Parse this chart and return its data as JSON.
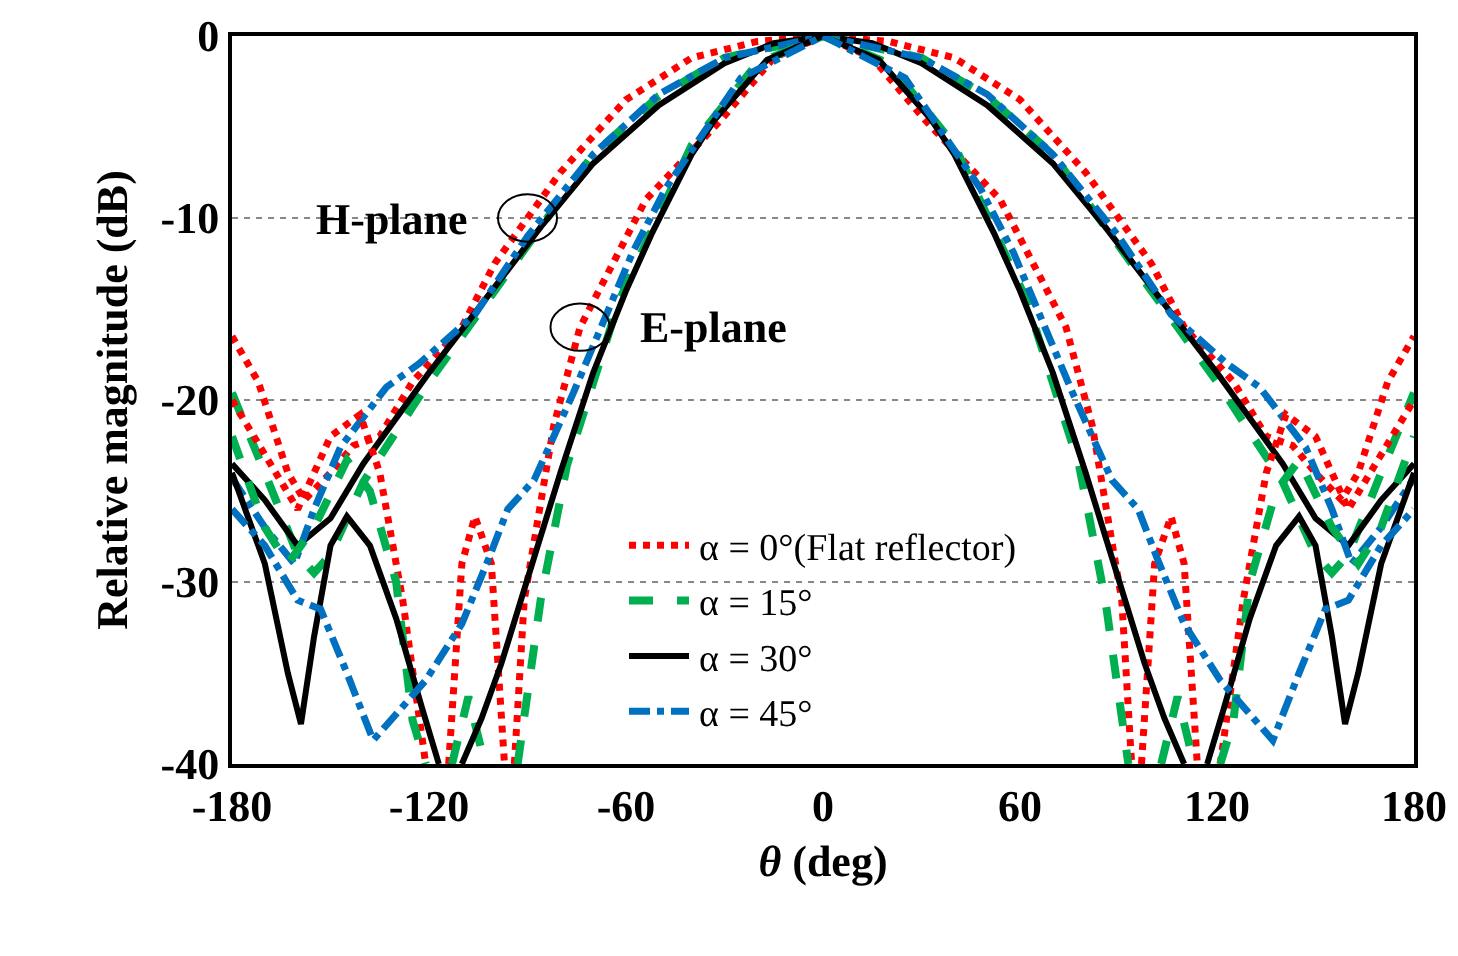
{
  "chart_data": {
    "type": "line",
    "xlabel": "θ (deg)",
    "ylabel": "Relative magnitude (dB)",
    "xlim": [
      -180,
      180
    ],
    "xticks": [
      -180,
      -120,
      -60,
      0,
      60,
      120,
      180
    ],
    "ylim": [
      -40,
      0
    ],
    "yticks": [
      -40,
      -30,
      -20,
      -10,
      0
    ],
    "grid": "y",
    "legend": "bottom",
    "marker": "none",
    "annotations": [
      {
        "text": "H-plane",
        "x": -90,
        "y": -10
      },
      {
        "text": "E-plane",
        "x": -74,
        "y": -16
      }
    ],
    "series": [
      {
        "name": "α = 0°(Flat reflector)",
        "color": "#ff0000",
        "line_style": "dotted",
        "x": [
          -180,
          -172,
          -163,
          -158,
          -150,
          -143,
          -135,
          -125,
          -110,
          -100,
          -90,
          -80,
          -60,
          -40,
          -20,
          0,
          20,
          40,
          60,
          80,
          90,
          100,
          110,
          125,
          135,
          143,
          150,
          158,
          163,
          172,
          180
        ],
        "values": [
          -16.5,
          -19,
          -24,
          -25.5,
          -24,
          -22.5,
          -22,
          -19,
          -16,
          -12.5,
          -10,
          -7.5,
          -3.5,
          -1.2,
          -0.3,
          0,
          -0.3,
          -1.2,
          -3.5,
          -7.5,
          -10,
          -12.5,
          -16,
          -19,
          -22,
          -22.5,
          -24,
          -25.5,
          -24,
          -19,
          -16.5
        ]
      },
      {
        "name": "α = 15°",
        "color": "#00b050",
        "line_style": "dashed",
        "x": [
          -180,
          -170,
          -160,
          -155,
          -150,
          -140,
          -120,
          -100,
          -86,
          -70,
          -50,
          -30,
          0,
          30,
          50,
          70,
          86,
          100,
          120,
          140,
          150,
          155,
          160,
          170,
          180
        ],
        "values": [
          -19.6,
          -24,
          -28.5,
          -29.5,
          -28.5,
          -24.5,
          -19,
          -14,
          -10.5,
          -6.5,
          -3.3,
          -1.2,
          0,
          -1.2,
          -3.3,
          -6.5,
          -10.5,
          -14,
          -19,
          -24.5,
          -28.5,
          -29.5,
          -28.5,
          -24,
          -19.6
        ]
      },
      {
        "name": "α = 30°",
        "color": "#000000",
        "line_style": "solid",
        "x": [
          -180,
          -170,
          -160,
          -150,
          -140,
          -120,
          -100,
          -86,
          -70,
          -50,
          -30,
          -15,
          0,
          15,
          30,
          50,
          70,
          86,
          100,
          120,
          140,
          150,
          160,
          170,
          180
        ],
        "values": [
          -23.5,
          -25.5,
          -28,
          -26.5,
          -23.5,
          -18.5,
          -13.8,
          -10.5,
          -7,
          -3.8,
          -1.5,
          -0.4,
          0,
          -0.4,
          -1.5,
          -3.8,
          -7,
          -10.5,
          -13.8,
          -18.5,
          -23.5,
          -26.5,
          -28,
          -25.5,
          -23.5
        ]
      },
      {
        "name": "α = 45°",
        "color": "#0070c0",
        "line_style": "dashdot",
        "x": [
          -180,
          -170,
          -161,
          -155,
          -147,
          -133,
          -123,
          -106,
          -90,
          -70,
          -50,
          -30,
          0,
          30,
          50,
          70,
          90,
          106,
          123,
          133,
          147,
          155,
          161,
          170,
          180
        ],
        "values": [
          -24.3,
          -27,
          -29,
          -26,
          -22.6,
          -19.3,
          -18,
          -15.3,
          -11,
          -6.5,
          -3.2,
          -1.2,
          0,
          -1.2,
          -3.2,
          -6.5,
          -11,
          -15.3,
          -18,
          -19.3,
          -22.6,
          -26,
          -29,
          -27,
          -24.3
        ]
      },
      {
        "color": "#ff0000",
        "line_style": "dotted",
        "x": [
          -180,
          -170,
          -160,
          -150,
          -141,
          -135,
          -128,
          -121,
          -117,
          -114,
          -110,
          -106,
          -101,
          -97,
          -95.5,
          -94,
          -91,
          -82,
          -74,
          -54,
          -31,
          -15,
          0,
          15,
          31,
          54,
          74,
          82,
          91,
          94,
          95.5,
          97,
          101,
          106,
          110,
          114,
          117,
          121,
          128,
          135,
          141,
          150,
          160,
          170,
          180
        ],
        "values": [
          -20,
          -23,
          -26,
          -22,
          -20.8,
          -24,
          -31,
          -40,
          null,
          -40,
          -29,
          -26.4,
          -29,
          -40,
          null,
          -40,
          -31,
          -21.4,
          -16,
          -9,
          -4.6,
          -1.2,
          0,
          -1.2,
          -4.6,
          -9,
          -16,
          -21.4,
          -31,
          -40,
          null,
          -40,
          -29,
          -26.4,
          -29,
          -40,
          null,
          -40,
          -31,
          -24,
          -20.8,
          -22,
          -26,
          -23,
          -20
        ]
      },
      {
        "color": "#00b050",
        "line_style": "dashed",
        "x": [
          -180,
          -170,
          -163,
          -155,
          -145,
          -138,
          -130,
          -125,
          -121,
          -117,
          -113,
          -108,
          -103,
          -98,
          -93,
          -86,
          -78,
          -62,
          -40,
          -20,
          0,
          20,
          40,
          62,
          78,
          86,
          93,
          98,
          103,
          108,
          113,
          117,
          121,
          125,
          130,
          138,
          145,
          155,
          163,
          170,
          180
        ],
        "values": [
          -22,
          -27,
          -29,
          -27,
          -23.3,
          -25,
          -30,
          -37.6,
          -40,
          null,
          -40,
          -36.3,
          -40,
          null,
          -40,
          -31,
          -23.6,
          -14.5,
          -6,
          -1.5,
          0,
          -1.5,
          -6,
          -14.5,
          -23.6,
          -31,
          -40,
          null,
          -40,
          -36.3,
          -40,
          null,
          -40,
          -37.6,
          -30,
          -25,
          -23.3,
          -27,
          -29,
          -27,
          -22
        ]
      },
      {
        "color": "#000000",
        "line_style": "solid",
        "x": [
          -180,
          -170,
          -163,
          -159,
          -155,
          -150,
          -145,
          -138,
          -130,
          -122,
          -117,
          -113.5,
          -110,
          -104,
          -98,
          -92,
          -80,
          -70,
          -60,
          -52,
          -40,
          -33,
          -17,
          0,
          17,
          33,
          40,
          52,
          60,
          70,
          80,
          92,
          98,
          104,
          110,
          113.5,
          117,
          122,
          130,
          138,
          145,
          150,
          155,
          159,
          163,
          170,
          180
        ],
        "values": [
          -24,
          -29,
          -35,
          -37.8,
          -33,
          -28,
          -26.4,
          -28,
          -32,
          -37,
          -40,
          null,
          -40,
          -37.5,
          -34.5,
          -31,
          -24,
          -18.5,
          -14,
          -10.8,
          -6.5,
          -4.6,
          -1.3,
          0,
          -1.3,
          -4.6,
          -6.5,
          -10.8,
          -14,
          -18.5,
          -24,
          -31,
          -34.5,
          -37.5,
          -40,
          null,
          -40,
          -37,
          -32,
          -28,
          -26.4,
          -28,
          -33,
          -37.8,
          -35,
          -29,
          -24
        ]
      },
      {
        "color": "#0070c0",
        "line_style": "dashdot",
        "x": [
          -180,
          -170,
          -160,
          -153,
          -145,
          -137,
          -121,
          -110,
          -102,
          -96,
          -88,
          -76,
          -58,
          -48,
          -25,
          0,
          25,
          48,
          58,
          76,
          88,
          96,
          102,
          110,
          121,
          137,
          145,
          153,
          160,
          170,
          180
        ],
        "values": [
          -26,
          -28,
          -31,
          -31.5,
          -35,
          -38.7,
          -35.4,
          -32.3,
          -28.8,
          -26,
          -24.4,
          -19.6,
          -11.9,
          -8.4,
          -2.3,
          0,
          -2.3,
          -8.4,
          -11.9,
          -19.6,
          -24.4,
          -26,
          -28.8,
          -32.3,
          -35.4,
          -38.7,
          -35,
          -31.5,
          -31,
          -28,
          -26
        ]
      }
    ]
  }
}
